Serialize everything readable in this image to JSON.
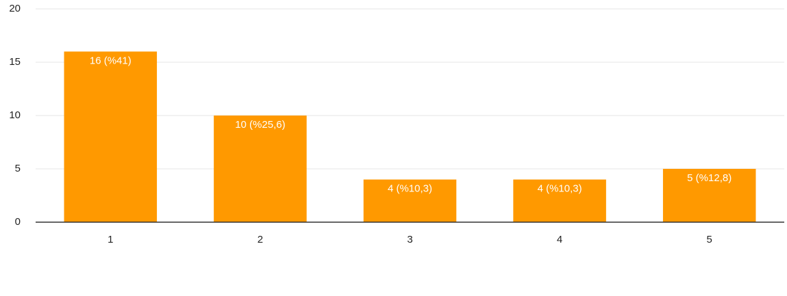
{
  "chart_data": {
    "type": "bar",
    "categories": [
      "1",
      "2",
      "3",
      "4",
      "5"
    ],
    "values": [
      16,
      10,
      4,
      4,
      5
    ],
    "value_labels": [
      "16 (%41)",
      "10 (%25,6)",
      "4 (%10,3)",
      "4 (%10,3)",
      "5 (%12,8)"
    ],
    "color": "#ff9900",
    "ylim": [
      0,
      20
    ],
    "yticks": [
      0,
      5,
      10,
      15,
      20
    ],
    "grid": true
  }
}
